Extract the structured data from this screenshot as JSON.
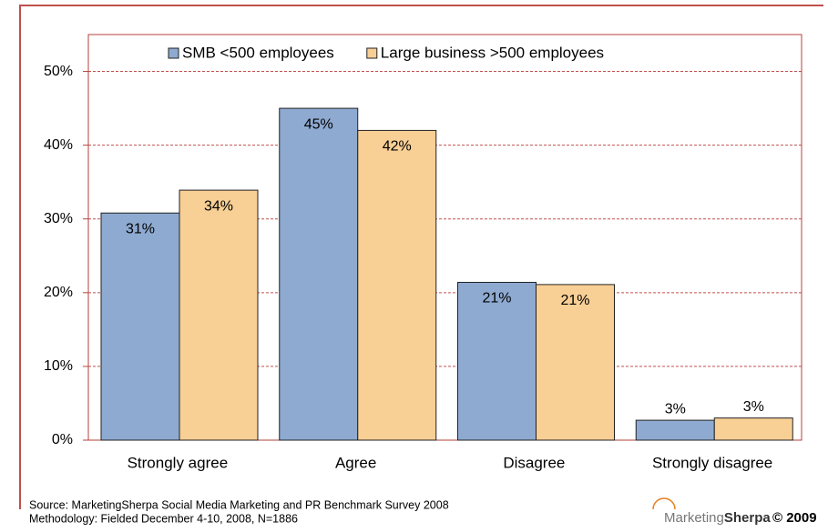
{
  "chart_data": {
    "type": "bar",
    "categories": [
      "Strongly agree",
      "Agree",
      "Disagree",
      "Strongly disagree"
    ],
    "series": [
      {
        "name": "SMB <500 employees",
        "color": "#8eaad1",
        "values": [
          30.8,
          45,
          21.4,
          2.7
        ],
        "value_labels": [
          "31%",
          "45%",
          "21%",
          "3%"
        ]
      },
      {
        "name": "Large business >500 employees",
        "color": "#f8cf95",
        "values": [
          33.9,
          42,
          21.1,
          3
        ],
        "value_labels": [
          "34%",
          "42%",
          "21%",
          "3%"
        ]
      }
    ],
    "ylim": [
      0,
      55
    ],
    "yticks": [
      {
        "value": 0,
        "label": "0%"
      },
      {
        "value": 10,
        "label": "10%"
      },
      {
        "value": 20,
        "label": "20%"
      },
      {
        "value": 30,
        "label": "30%"
      },
      {
        "value": 40,
        "label": "40%"
      },
      {
        "value": 50,
        "label": "50%"
      }
    ],
    "grid": true,
    "legend": "top"
  },
  "footer": {
    "source": "Source: MarketingSherpa Social Media Marketing and PR Benchmark Survey 2008",
    "methodology": "Methodology: Fielded December 4-10, 2008, N=1886",
    "logo_light": "Marketing",
    "logo_bold": "Sherpa",
    "copyright": "© 2009"
  }
}
